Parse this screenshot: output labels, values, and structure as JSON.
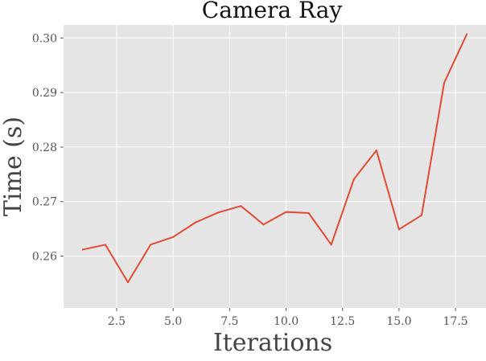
{
  "chart_data": {
    "type": "line",
    "title": "Camera Ray",
    "xlabel": "Iterations",
    "ylabel": "Time (s)",
    "xlim": [
      0.15,
      18.85
    ],
    "ylim": [
      0.2505,
      0.3024
    ],
    "xticks": [
      2.5,
      5.0,
      7.5,
      10.0,
      12.5,
      15.0,
      17.5
    ],
    "xtick_labels": [
      "2.5",
      "5.0",
      "7.5",
      "10.0",
      "12.5",
      "15.0",
      "17.5"
    ],
    "yticks": [
      0.26,
      0.27,
      0.28,
      0.29,
      0.3
    ],
    "ytick_labels": [
      "0.26",
      "0.27",
      "0.28",
      "0.29",
      "0.30"
    ],
    "grid": true,
    "series": [
      {
        "color": "#E24A33",
        "x": [
          1,
          2,
          3,
          4,
          5,
          6,
          7,
          8,
          9,
          10,
          11,
          12,
          13,
          14,
          15,
          16,
          17,
          18
        ],
        "values": [
          0.2612,
          0.2621,
          0.2552,
          0.2621,
          0.2635,
          0.2662,
          0.268,
          0.2692,
          0.2658,
          0.2681,
          0.2679,
          0.2621,
          0.2741,
          0.2794,
          0.2649,
          0.2675,
          0.2918,
          0.3007
        ]
      }
    ],
    "colors": {
      "plot_background": "#E5E5E5",
      "grid": "#FFFFFF"
    }
  }
}
